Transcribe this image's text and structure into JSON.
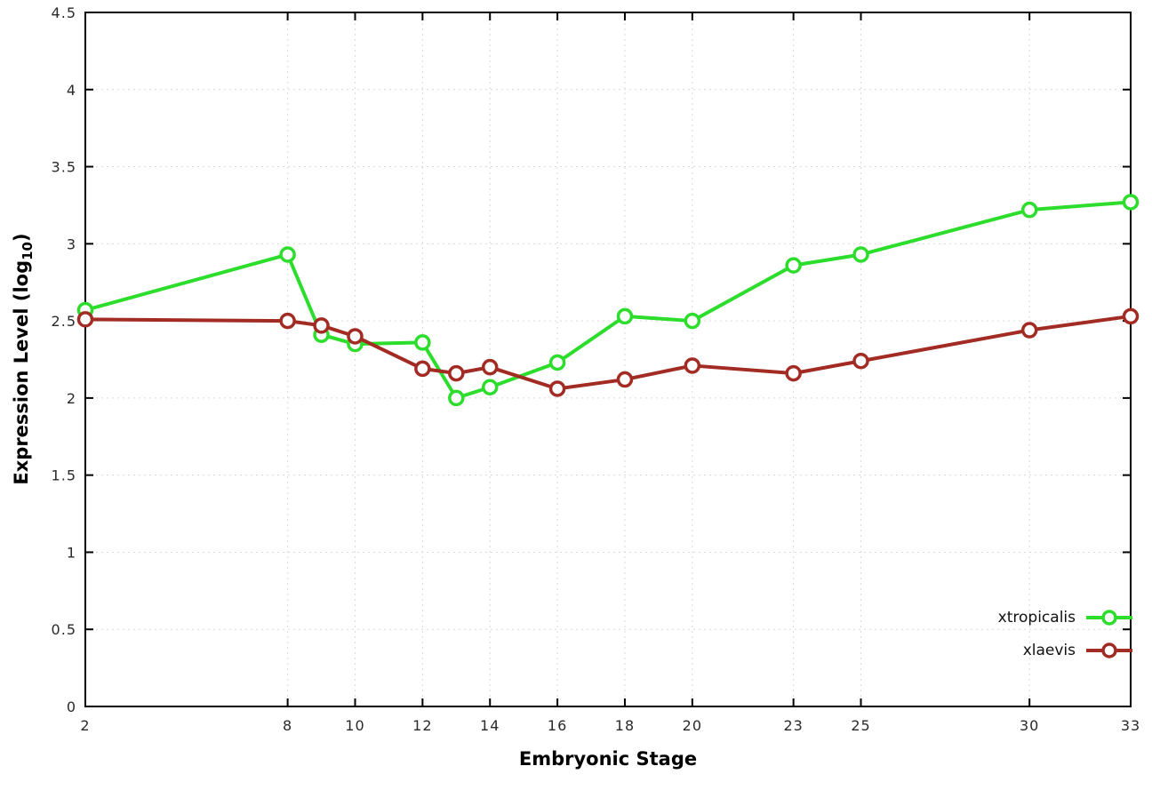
{
  "chart_data": {
    "type": "line",
    "title": "",
    "xlabel": "Embryonic Stage",
    "ylabel": {
      "main": "Expression Level (log",
      "sub": "10",
      "end": ")"
    },
    "x_range": [
      2,
      33
    ],
    "y_range": [
      0,
      4.5
    ],
    "x_ticks": [
      2,
      8,
      10,
      12,
      14,
      16,
      18,
      20,
      23,
      25,
      30,
      33
    ],
    "y_ticks": [
      0,
      0.5,
      1,
      1.5,
      2,
      2.5,
      3,
      3.5,
      4,
      4.5
    ],
    "y_tick_labels": [
      "0",
      "0.5",
      "1",
      "1.5",
      "2",
      "2.5",
      "3",
      "3.5",
      "4",
      "4.5"
    ],
    "grid": true,
    "legend_position": "bottom-right",
    "x": [
      2,
      8,
      9,
      10,
      12,
      13,
      14,
      16,
      18,
      20,
      23,
      25,
      30,
      33
    ],
    "series": [
      {
        "name": "xtropicalis",
        "color": "#2cdd2c",
        "values": [
          2.57,
          2.93,
          2.41,
          2.35,
          2.36,
          2.0,
          2.07,
          2.23,
          2.53,
          2.5,
          2.86,
          2.93,
          3.22,
          3.27
        ]
      },
      {
        "name": "xlaevis",
        "color": "#a22c24",
        "values": [
          2.51,
          2.5,
          2.47,
          2.4,
          2.19,
          2.16,
          2.2,
          2.06,
          2.12,
          2.21,
          2.16,
          2.24,
          2.44,
          2.53
        ]
      }
    ],
    "style": {
      "border_color": "#000000",
      "grid_color": "#d9d9d9",
      "tick_label_color": "#2a2a2a",
      "marker_fill": "#ffffff"
    }
  }
}
